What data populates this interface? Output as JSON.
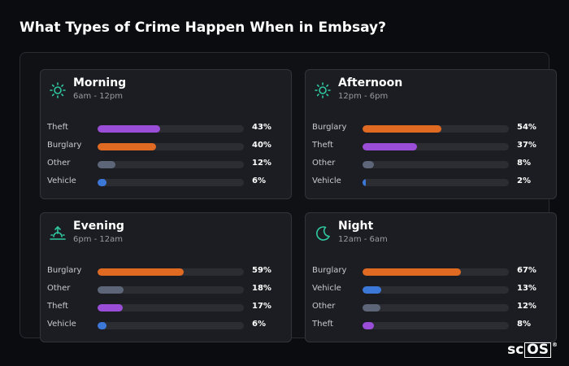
{
  "title": "What Types of Crime Happen When in Embsay?",
  "colors": {
    "burglary": "#e06a22",
    "theft": "#9a4ed8",
    "other": "#5d6678",
    "vehicle": "#3c78d8",
    "icon": "#2fc8a0"
  },
  "cards": [
    {
      "title": "Morning",
      "subtitle": "6am - 12pm",
      "icon": "sun-icon",
      "rows": [
        {
          "label": "Theft",
          "pct": "43%",
          "value": 43,
          "color": "#9a4ed8"
        },
        {
          "label": "Burglary",
          "pct": "40%",
          "value": 40,
          "color": "#e06a22"
        },
        {
          "label": "Other",
          "pct": "12%",
          "value": 12,
          "color": "#5d6678"
        },
        {
          "label": "Vehicle",
          "pct": "6%",
          "value": 6,
          "color": "#3c78d8"
        }
      ]
    },
    {
      "title": "Afternoon",
      "subtitle": "12pm - 6pm",
      "icon": "sun-icon",
      "rows": [
        {
          "label": "Burglary",
          "pct": "54%",
          "value": 54,
          "color": "#e06a22"
        },
        {
          "label": "Theft",
          "pct": "37%",
          "value": 37,
          "color": "#9a4ed8"
        },
        {
          "label": "Other",
          "pct": "8%",
          "value": 8,
          "color": "#5d6678"
        },
        {
          "label": "Vehicle",
          "pct": "2%",
          "value": 2,
          "color": "#3c78d8"
        }
      ]
    },
    {
      "title": "Evening",
      "subtitle": "6pm - 12am",
      "icon": "sunset-icon",
      "rows": [
        {
          "label": "Burglary",
          "pct": "59%",
          "value": 59,
          "color": "#e06a22"
        },
        {
          "label": "Other",
          "pct": "18%",
          "value": 18,
          "color": "#5d6678"
        },
        {
          "label": "Theft",
          "pct": "17%",
          "value": 17,
          "color": "#9a4ed8"
        },
        {
          "label": "Vehicle",
          "pct": "6%",
          "value": 6,
          "color": "#3c78d8"
        }
      ]
    },
    {
      "title": "Night",
      "subtitle": "12am - 6am",
      "icon": "moon-icon",
      "rows": [
        {
          "label": "Burglary",
          "pct": "67%",
          "value": 67,
          "color": "#e06a22"
        },
        {
          "label": "Vehicle",
          "pct": "13%",
          "value": 13,
          "color": "#3c78d8"
        },
        {
          "label": "Other",
          "pct": "12%",
          "value": 12,
          "color": "#5d6678"
        },
        {
          "label": "Theft",
          "pct": "8%",
          "value": 8,
          "color": "#9a4ed8"
        }
      ]
    }
  ],
  "logo": {
    "prefix": "sc",
    "boxed": "OS",
    "mark": "®"
  }
}
